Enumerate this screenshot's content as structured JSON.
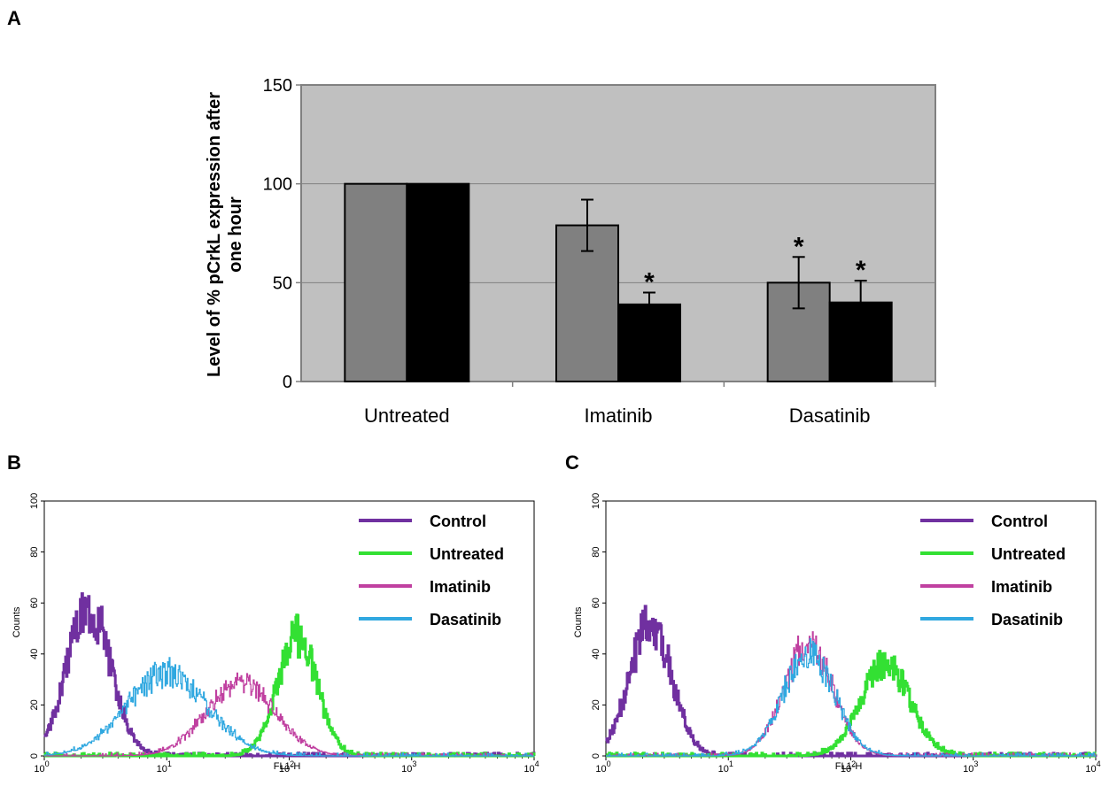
{
  "panels": {
    "a": "A",
    "b": "B",
    "c": "C"
  },
  "chart_data": [
    {
      "id": "A",
      "type": "bar",
      "ylabel_line1": "Level of %  pCrkL expression after",
      "ylabel_line2": "one hour",
      "categories": [
        "Untreated",
        "Imatinib",
        "Dasatinib"
      ],
      "ylim": [
        0,
        150
      ],
      "yticks": [
        "0",
        "50",
        "100",
        "150"
      ],
      "grid": true,
      "colors": {
        "plot_bg": "#c0c0c0",
        "series1": "#808080",
        "series2": "#000000"
      },
      "series": [
        {
          "values": [
            100,
            79,
            50
          ],
          "errors": [
            0,
            13,
            13
          ],
          "significant": [
            false,
            false,
            true
          ]
        },
        {
          "values": [
            100,
            39,
            40
          ],
          "errors": [
            0,
            6,
            11
          ],
          "significant": [
            false,
            true,
            true
          ]
        }
      ],
      "significance_mark": "*"
    },
    {
      "id": "B",
      "type": "line",
      "xlabel": "FL1-H",
      "ylabel": "Counts",
      "x_scale": "log",
      "xlim": [
        1,
        10000
      ],
      "ylim": [
        0,
        100
      ],
      "xticks": [
        {
          "base": "10",
          "exp": "0"
        },
        {
          "base": "10",
          "exp": "1"
        },
        {
          "base": "10",
          "exp": "2"
        },
        {
          "base": "10",
          "exp": "3"
        },
        {
          "base": "10",
          "exp": "4"
        }
      ],
      "yticks": [
        "0",
        "20",
        "40",
        "60",
        "80",
        "100"
      ],
      "legend_position": "top-right",
      "series": [
        {
          "name": "Control",
          "color": "#7030a0",
          "width": 3.0,
          "peak_x": 2.3,
          "peak_y": 58,
          "sigma": 0.18,
          "seed": 3
        },
        {
          "name": "Untreated",
          "color": "#33e033",
          "width": 3.0,
          "peak_x": 115,
          "peak_y": 47,
          "sigma": 0.16,
          "seed": 7
        },
        {
          "name": "Imatinib",
          "color": "#c040a0",
          "width": 1.2,
          "peak_x": 40,
          "peak_y": 28,
          "sigma": 0.28,
          "seed": 11
        },
        {
          "name": "Dasatinib",
          "color": "#30a8e0",
          "width": 1.2,
          "peak_x": 10,
          "peak_y": 32,
          "sigma": 0.33,
          "seed": 5
        }
      ]
    },
    {
      "id": "C",
      "type": "line",
      "xlabel": "FL1-H",
      "ylabel": "Counts",
      "x_scale": "log",
      "xlim": [
        1,
        10000
      ],
      "ylim": [
        0,
        100
      ],
      "xticks": [
        {
          "base": "10",
          "exp": "0"
        },
        {
          "base": "10",
          "exp": "1"
        },
        {
          "base": "10",
          "exp": "2"
        },
        {
          "base": "10",
          "exp": "3"
        },
        {
          "base": "10",
          "exp": "4"
        }
      ],
      "yticks": [
        "0",
        "20",
        "40",
        "60",
        "80",
        "100"
      ],
      "legend_position": "top-right",
      "series": [
        {
          "name": "Control",
          "color": "#7030a0",
          "width": 3.0,
          "peak_x": 2.3,
          "peak_y": 52,
          "sigma": 0.17,
          "seed": 13
        },
        {
          "name": "Untreated",
          "color": "#33e033",
          "width": 3.0,
          "peak_x": 190,
          "peak_y": 36,
          "sigma": 0.2,
          "seed": 17
        },
        {
          "name": "Imatinib",
          "color": "#c040a0",
          "width": 1.2,
          "peak_x": 45,
          "peak_y": 44,
          "sigma": 0.2,
          "seed": 19
        },
        {
          "name": "Dasatinib",
          "color": "#30a8e0",
          "width": 1.2,
          "peak_x": 45,
          "peak_y": 40,
          "sigma": 0.21,
          "seed": 23
        }
      ]
    }
  ]
}
